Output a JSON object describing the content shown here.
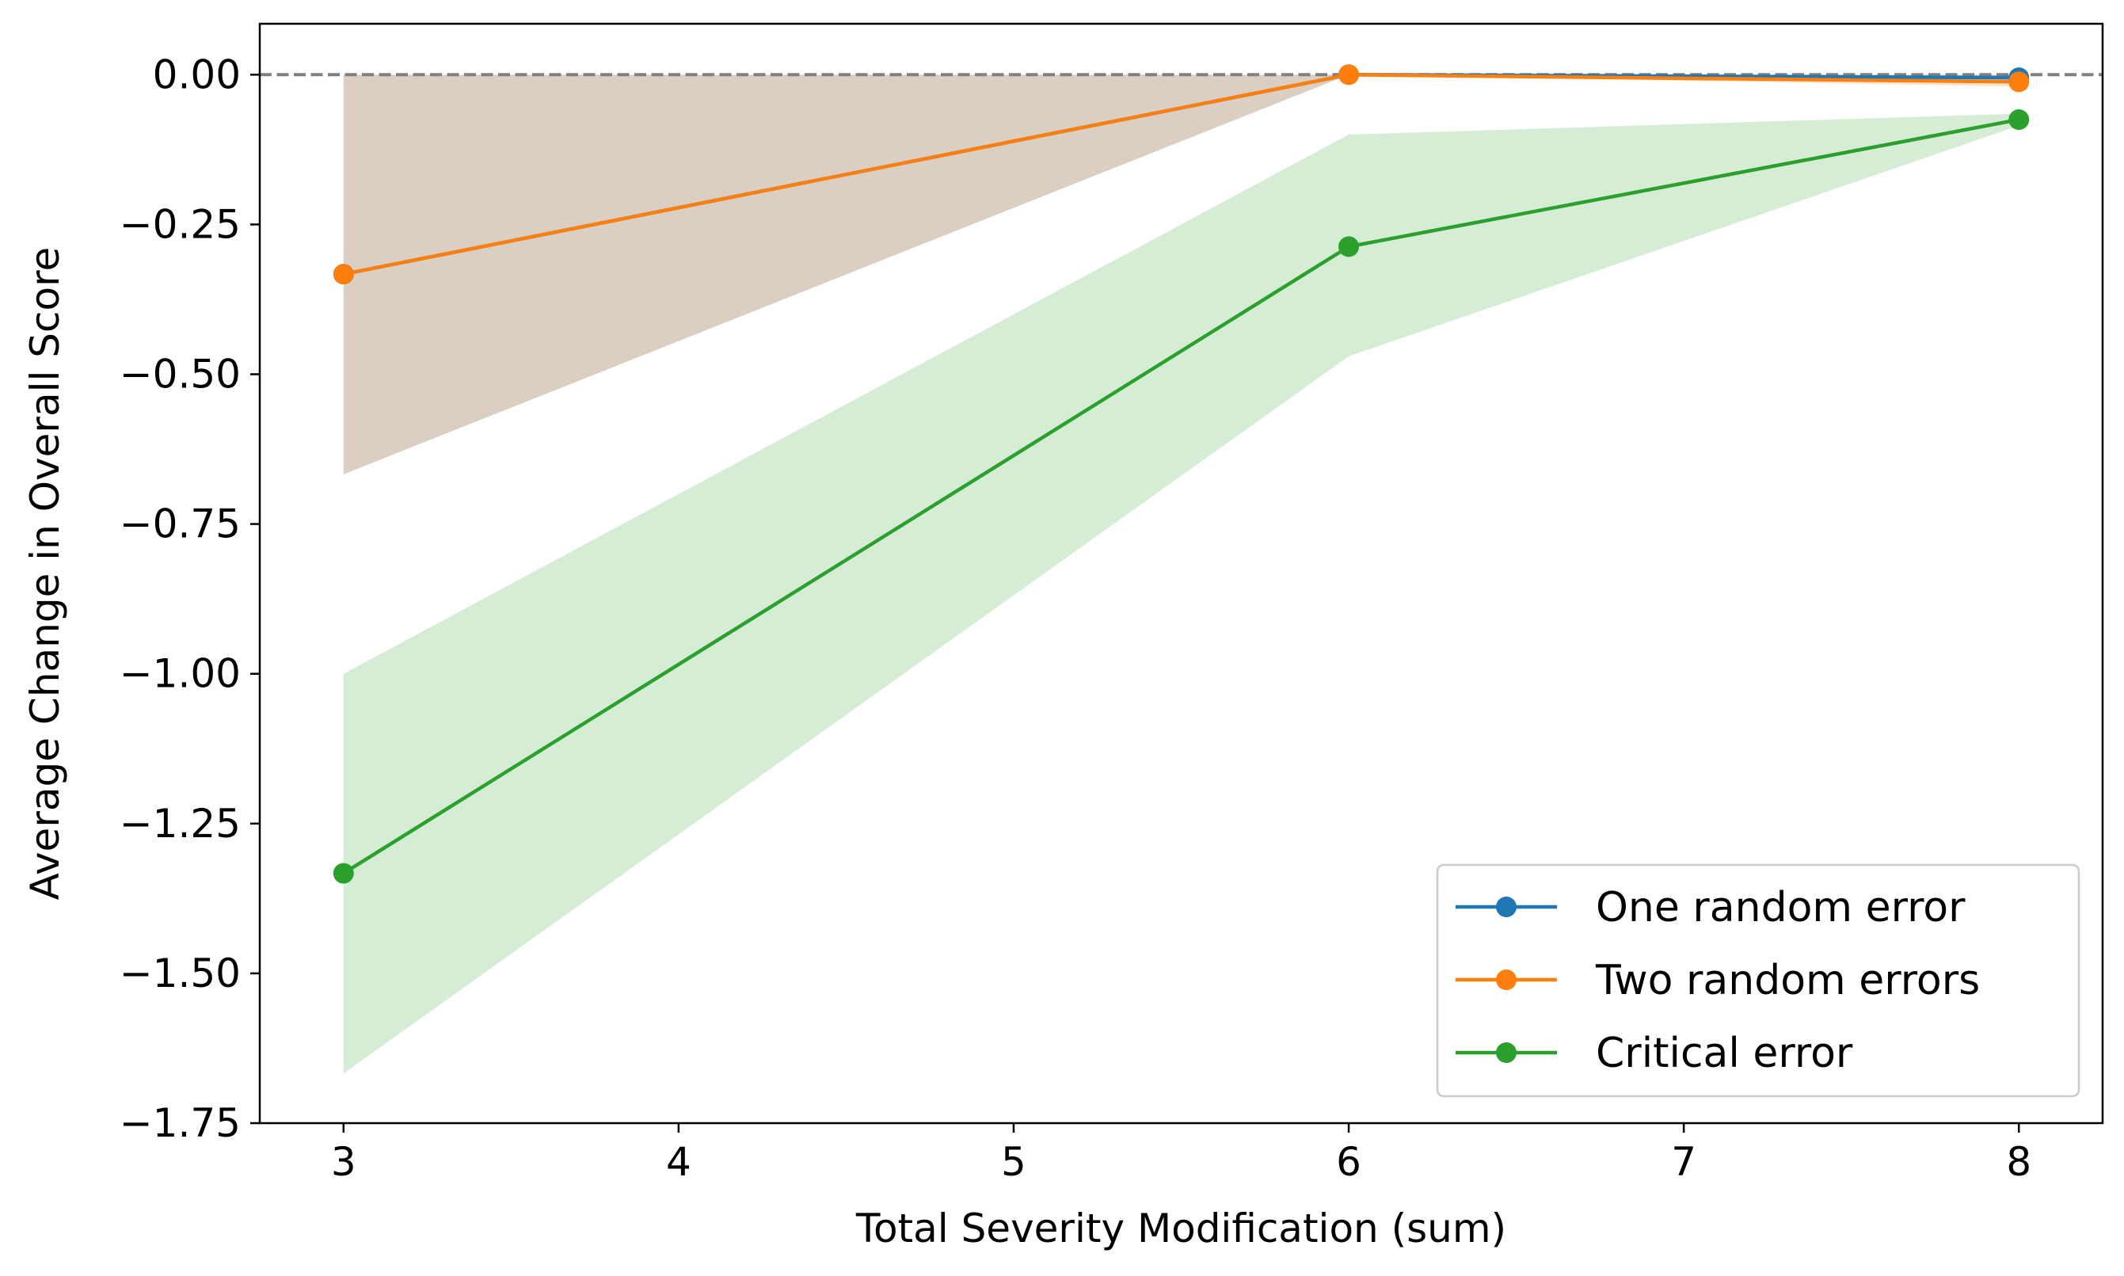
{
  "chart_data": {
    "type": "line",
    "title": "",
    "xlabel": "Total Severity Modification (sum)",
    "ylabel": "Average Change in Overall Score",
    "xlim": [
      2.75,
      8.25
    ],
    "ylim": [
      -1.75,
      0.085
    ],
    "x_ticks": [
      {
        "value": 3,
        "label": "3"
      },
      {
        "value": 4,
        "label": "4"
      },
      {
        "value": 5,
        "label": "5"
      },
      {
        "value": 6,
        "label": "6"
      },
      {
        "value": 7,
        "label": "7"
      },
      {
        "value": 8,
        "label": "8"
      }
    ],
    "y_ticks": [
      {
        "value": 0.0,
        "label": "0.00"
      },
      {
        "value": -0.25,
        "label": "−0.25"
      },
      {
        "value": -0.5,
        "label": "−0.50"
      },
      {
        "value": -0.75,
        "label": "−0.75"
      },
      {
        "value": -1.0,
        "label": "−1.00"
      },
      {
        "value": -1.25,
        "label": "−1.25"
      },
      {
        "value": -1.5,
        "label": "−1.50"
      },
      {
        "value": -1.75,
        "label": "−1.75"
      }
    ],
    "reference_line": {
      "y": 0.0,
      "style": "dashed",
      "color": "#808080"
    },
    "grid": false,
    "legend_position": "lower right",
    "series": [
      {
        "name": "One random error",
        "color": "#1f77b4",
        "band_color": "#1f77b4",
        "x": [
          3,
          6,
          8
        ],
        "y": [
          -0.333,
          0.0,
          -0.005
        ],
        "band_lower": [
          -0.667,
          0.0,
          -0.01
        ],
        "band_upper": [
          0.0,
          0.0,
          0.0
        ]
      },
      {
        "name": "Two random errors",
        "color": "#ff7f0e",
        "band_color": "#ff7f0e",
        "x": [
          3,
          6,
          8
        ],
        "y": [
          -0.333,
          0.0,
          -0.012
        ],
        "band_lower": [
          -0.667,
          0.0,
          -0.02
        ],
        "band_upper": [
          0.0,
          0.0,
          0.0
        ]
      },
      {
        "name": "Critical error",
        "color": "#2ca02c",
        "band_color": "#2ca02c",
        "x": [
          3,
          6,
          8
        ],
        "y": [
          -1.333,
          -0.287,
          -0.075
        ],
        "band_lower": [
          -1.667,
          -0.47,
          -0.085
        ],
        "band_upper": [
          -1.0,
          -0.1,
          -0.065
        ]
      }
    ]
  }
}
